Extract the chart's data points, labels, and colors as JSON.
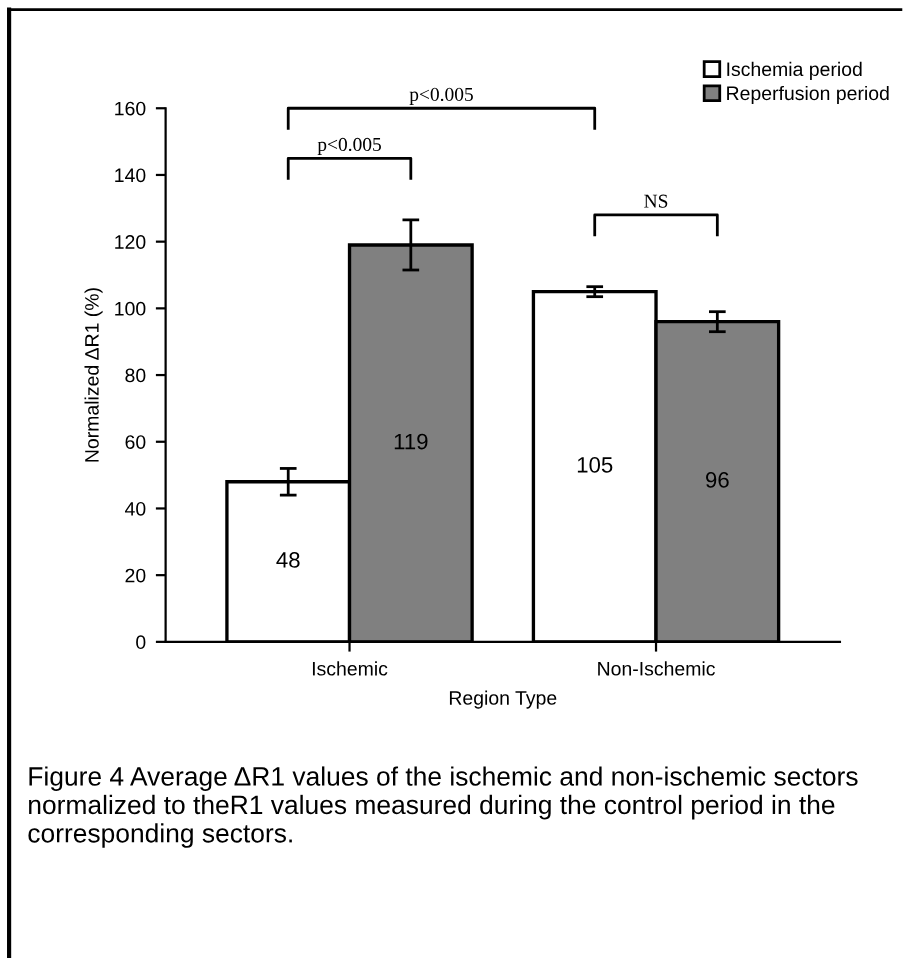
{
  "chart_data": {
    "type": "bar",
    "xlabel": "Region Type",
    "ylabel": "Normalized ΔR1 (%)",
    "categories": [
      "Ischemic",
      "Non-Ischemic"
    ],
    "series": [
      {
        "name": "Ischemia period",
        "color": "#ffffff",
        "values": [
          48,
          105
        ],
        "errors": [
          4,
          1.5
        ]
      },
      {
        "name": "Reperfusion period",
        "color": "#808080",
        "values": [
          119,
          96
        ],
        "errors": [
          7.5,
          3
        ]
      }
    ],
    "ylim": [
      0,
      160
    ],
    "yticks": [
      0,
      20,
      40,
      60,
      80,
      100,
      120,
      140,
      160
    ],
    "grid": false,
    "legend": "top right",
    "data_labels": true,
    "annotations": [
      "p<0.005",
      "p<0.005",
      "NS",
      "Figure 4 Average ΔR1 values of the ischemic and non-ischemic sectors normalized to theR1 values measured during the control period in the corresponding sectors."
    ]
  }
}
